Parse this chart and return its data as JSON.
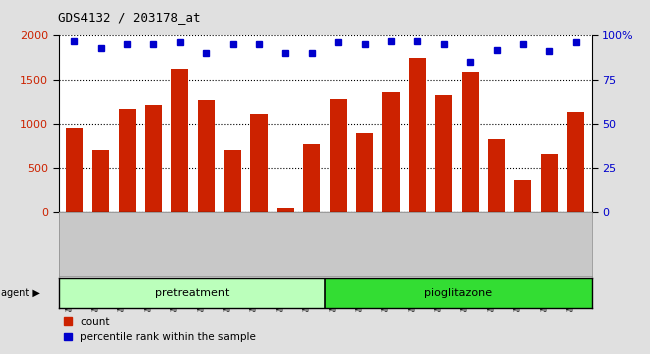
{
  "title": "GDS4132 / 203178_at",
  "categories": [
    "GSM201542",
    "GSM201543",
    "GSM201544",
    "GSM201545",
    "GSM201829",
    "GSM201830",
    "GSM201831",
    "GSM201832",
    "GSM201833",
    "GSM201834",
    "GSM201835",
    "GSM201836",
    "GSM201837",
    "GSM201838",
    "GSM201839",
    "GSM201840",
    "GSM201841",
    "GSM201842",
    "GSM201843",
    "GSM201844"
  ],
  "counts": [
    950,
    700,
    1170,
    1210,
    1620,
    1270,
    700,
    1110,
    50,
    775,
    1280,
    900,
    1360,
    1740,
    1330,
    1590,
    830,
    370,
    660,
    1130
  ],
  "percentile_ranks": [
    97,
    93,
    95,
    95,
    96,
    90,
    95,
    95,
    90,
    90,
    96,
    95,
    97,
    97,
    95,
    85,
    92,
    95,
    91,
    96
  ],
  "bar_color": "#cc2200",
  "dot_color": "#0000cc",
  "pretreatment_color": "#bbffbb",
  "pioglitazone_color": "#33dd33",
  "ylim_left": [
    0,
    2000
  ],
  "ylim_right": [
    0,
    100
  ],
  "yticks_left": [
    0,
    500,
    1000,
    1500,
    2000
  ],
  "yticks_right": [
    0,
    25,
    50,
    75,
    100
  ],
  "ytick_labels_right": [
    "0",
    "25",
    "50",
    "75",
    "100%"
  ],
  "background_color": "#e0e0e0",
  "plot_bg_color": "#ffffff",
  "legend_count_label": "count",
  "legend_pct_label": "percentile rank within the sample",
  "n_pretreatment": 10,
  "n_pioglitazone": 10
}
